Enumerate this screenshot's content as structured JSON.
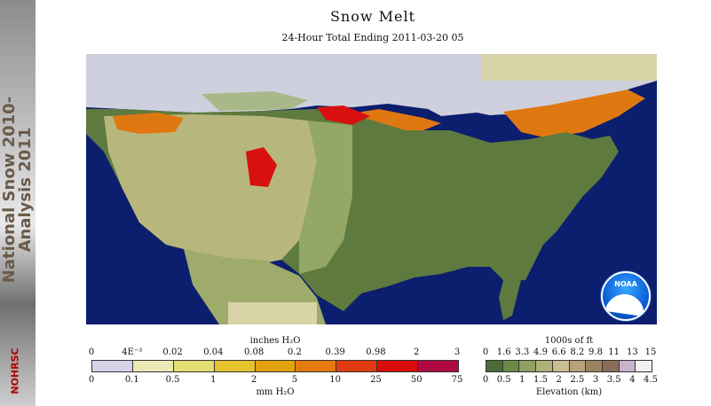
{
  "sidebar": {
    "title_line1": "National Snow 2010-",
    "title_line2": "Analysis 2011",
    "org": "NOHRSC"
  },
  "title": "Snow Melt",
  "subtitle": "24-Hour Total Ending 2011-03-20 05",
  "logo": {
    "label": "NOAA"
  },
  "legend_melt": {
    "top_label": "inches H₂O",
    "bottom_label": "mm H₂O",
    "top_ticks": [
      "0",
      "4E⁻³",
      "0.02",
      "0.04",
      "0.08",
      "0.2",
      "0.39",
      "0.98",
      "2",
      "3"
    ],
    "bottom_ticks": [
      "0",
      "0.1",
      "0.5",
      "1",
      "2",
      "5",
      "10",
      "25",
      "50",
      "75"
    ],
    "colors": [
      "#d6d3e8",
      "#ece9b5",
      "#e3df72",
      "#e6c22e",
      "#e3a20a",
      "#e47a0b",
      "#e03a10",
      "#d80d0d",
      "#b00a45"
    ]
  },
  "legend_elev": {
    "top_label": "1000s of ft",
    "bottom_label": "Elevation (km)",
    "top_ticks": [
      "0",
      "1.6",
      "3.3",
      "4.9",
      "6.6",
      "8.2",
      "9.8",
      "11",
      "13",
      "15"
    ],
    "bottom_ticks": [
      "0",
      "0.5",
      "1",
      "1.5",
      "2",
      "2.5",
      "3",
      "3.5",
      "4",
      "4.5"
    ],
    "colors": [
      "#4d6b3a",
      "#6a8a48",
      "#8fa060",
      "#b0b07a",
      "#c9be91",
      "#b8a27a",
      "#9d8262",
      "#8a6e5a",
      "#c8b3cf",
      "#f2f2f2"
    ]
  }
}
